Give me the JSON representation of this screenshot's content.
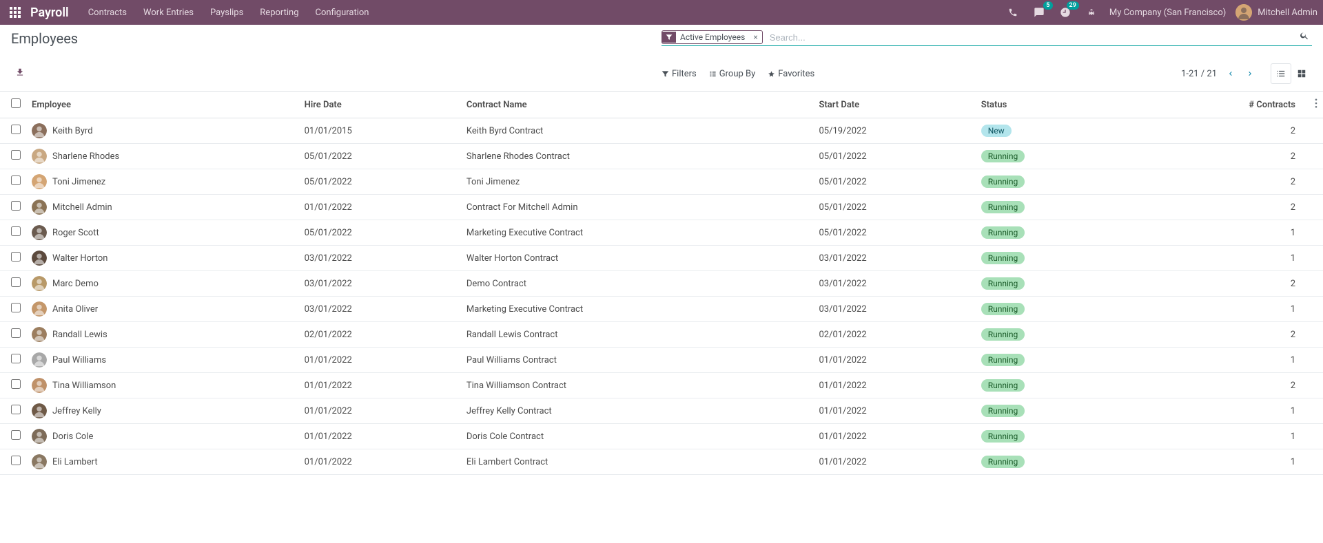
{
  "navbar": {
    "brand": "Payroll",
    "menu": [
      "Contracts",
      "Work Entries",
      "Payslips",
      "Reporting",
      "Configuration"
    ],
    "messages_badge": "5",
    "activities_badge": "29",
    "company": "My Company (San Francisco)",
    "user": "Mitchell Admin"
  },
  "page": {
    "title": "Employees"
  },
  "search": {
    "filter_chip": "Active Employees",
    "placeholder": "Search..."
  },
  "toolbar": {
    "filters": "Filters",
    "group_by": "Group By",
    "favorites": "Favorites",
    "pager": "1-21 / 21"
  },
  "table": {
    "columns": [
      "Employee",
      "Hire Date",
      "Contract Name",
      "Start Date",
      "Status",
      "# Contracts"
    ],
    "status_colors": {
      "New": {
        "bg": "#b3e5ec",
        "fg": "#0c5460"
      },
      "Running": {
        "bg": "#a8e0b8",
        "fg": "#155724"
      }
    },
    "avatar_colors": [
      "#8b6f5c",
      "#c9a882",
      "#d4a574",
      "#8b7355",
      "#6b5b4f",
      "#5c4a3d",
      "#b89968",
      "#c4976a",
      "#9c7e5f",
      "#a8a8a8",
      "#bf9169",
      "#6f5a47",
      "#7d6b58",
      "#8a7862"
    ],
    "rows": [
      {
        "employee": "Keith Byrd",
        "hire_date": "01/01/2015",
        "contract_name": "Keith Byrd Contract",
        "start_date": "05/19/2022",
        "status": "New",
        "contracts": "2"
      },
      {
        "employee": "Sharlene Rhodes",
        "hire_date": "05/01/2022",
        "contract_name": "Sharlene Rhodes Contract",
        "start_date": "05/01/2022",
        "status": "Running",
        "contracts": "2"
      },
      {
        "employee": "Toni Jimenez",
        "hire_date": "05/01/2022",
        "contract_name": "Toni Jimenez",
        "start_date": "05/01/2022",
        "status": "Running",
        "contracts": "2"
      },
      {
        "employee": "Mitchell Admin",
        "hire_date": "01/01/2022",
        "contract_name": "Contract For Mitchell Admin",
        "start_date": "05/01/2022",
        "status": "Running",
        "contracts": "2"
      },
      {
        "employee": "Roger Scott",
        "hire_date": "05/01/2022",
        "contract_name": "Marketing Executive Contract",
        "start_date": "05/01/2022",
        "status": "Running",
        "contracts": "1"
      },
      {
        "employee": "Walter Horton",
        "hire_date": "03/01/2022",
        "contract_name": "Walter Horton Contract",
        "start_date": "03/01/2022",
        "status": "Running",
        "contracts": "1"
      },
      {
        "employee": "Marc Demo",
        "hire_date": "03/01/2022",
        "contract_name": "Demo Contract",
        "start_date": "03/01/2022",
        "status": "Running",
        "contracts": "2"
      },
      {
        "employee": "Anita Oliver",
        "hire_date": "03/01/2022",
        "contract_name": "Marketing Executive Contract",
        "start_date": "03/01/2022",
        "status": "Running",
        "contracts": "1"
      },
      {
        "employee": "Randall Lewis",
        "hire_date": "02/01/2022",
        "contract_name": "Randall Lewis Contract",
        "start_date": "02/01/2022",
        "status": "Running",
        "contracts": "2"
      },
      {
        "employee": "Paul Williams",
        "hire_date": "01/01/2022",
        "contract_name": "Paul Williams Contract",
        "start_date": "01/01/2022",
        "status": "Running",
        "contracts": "1"
      },
      {
        "employee": "Tina Williamson",
        "hire_date": "01/01/2022",
        "contract_name": "Tina Williamson Contract",
        "start_date": "01/01/2022",
        "status": "Running",
        "contracts": "2"
      },
      {
        "employee": "Jeffrey Kelly",
        "hire_date": "01/01/2022",
        "contract_name": "Jeffrey Kelly Contract",
        "start_date": "01/01/2022",
        "status": "Running",
        "contracts": "1"
      },
      {
        "employee": "Doris Cole",
        "hire_date": "01/01/2022",
        "contract_name": "Doris Cole Contract",
        "start_date": "01/01/2022",
        "status": "Running",
        "contracts": "1"
      },
      {
        "employee": "Eli Lambert",
        "hire_date": "01/01/2022",
        "contract_name": "Eli Lambert Contract",
        "start_date": "01/01/2022",
        "status": "Running",
        "contracts": "1"
      }
    ]
  }
}
